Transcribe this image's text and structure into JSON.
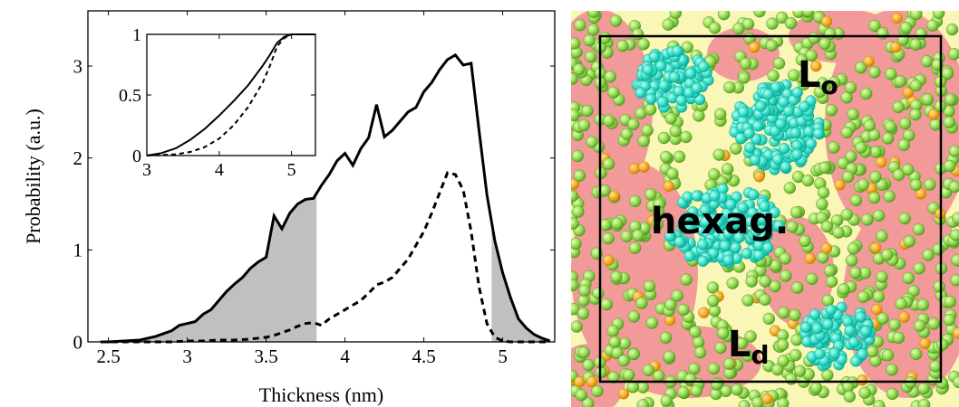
{
  "chart_data": [
    {
      "type": "line",
      "xlabel": "Thickness (nm)",
      "ylabel": "Probability (a.u.)",
      "x": [
        2.45,
        2.5,
        2.55,
        2.6,
        2.65,
        2.7,
        2.75,
        2.8,
        2.85,
        2.9,
        2.95,
        3.0,
        3.05,
        3.1,
        3.15,
        3.2,
        3.25,
        3.3,
        3.35,
        3.4,
        3.45,
        3.5,
        3.55,
        3.6,
        3.65,
        3.7,
        3.75,
        3.8,
        3.85,
        3.9,
        3.95,
        4.0,
        4.05,
        4.1,
        4.15,
        4.2,
        4.25,
        4.3,
        4.35,
        4.4,
        4.45,
        4.5,
        4.55,
        4.6,
        4.65,
        4.7,
        4.75,
        4.8,
        4.85,
        4.9,
        4.95,
        5.0,
        5.05,
        5.1,
        5.15,
        5.2,
        5.25,
        5.3
      ],
      "series": [
        {
          "color": "#000000",
          "style": "solid",
          "values": [
            0,
            0,
            0.005,
            0.01,
            0.015,
            0.02,
            0.04,
            0.06,
            0.09,
            0.12,
            0.18,
            0.2,
            0.22,
            0.3,
            0.35,
            0.45,
            0.55,
            0.63,
            0.7,
            0.8,
            0.87,
            0.92,
            1.37,
            1.23,
            1.4,
            1.5,
            1.55,
            1.56,
            1.7,
            1.82,
            1.97,
            2.05,
            1.92,
            2.1,
            2.22,
            2.58,
            2.23,
            2.3,
            2.4,
            2.5,
            2.55,
            2.72,
            2.82,
            2.96,
            3.07,
            3.12,
            3.01,
            3.03,
            2.3,
            1.6,
            1.1,
            0.75,
            0.48,
            0.25,
            0.15,
            0.08,
            0.04,
            0.01
          ]
        },
        {
          "color": "#000000",
          "style": "dashed",
          "values": [
            0,
            0,
            0,
            0,
            0,
            0,
            0,
            0,
            0,
            0,
            0.005,
            0.01,
            0.01,
            0.01,
            0.015,
            0.02,
            0.02,
            0.02,
            0.025,
            0.03,
            0.04,
            0.05,
            0.07,
            0.1,
            0.13,
            0.17,
            0.2,
            0.21,
            0.18,
            0.25,
            0.3,
            0.35,
            0.4,
            0.45,
            0.53,
            0.62,
            0.65,
            0.7,
            0.8,
            0.9,
            1.05,
            1.2,
            1.4,
            1.62,
            1.84,
            1.82,
            1.65,
            1.2,
            0.6,
            0.2,
            0.05,
            0.01,
            0,
            0,
            0,
            0,
            0,
            0
          ]
        }
      ],
      "shaded_ranges": [
        [
          2.37,
          3.82
        ],
        [
          4.93,
          5.33
        ]
      ],
      "shade_color": "#c0c0c0",
      "xlim": [
        2.37,
        5.33
      ],
      "ylim": [
        0,
        3.6
      ],
      "xticks": [
        2.5,
        3,
        3.5,
        4,
        4.5,
        5
      ],
      "yticks": [
        0,
        1,
        2,
        3
      ]
    },
    {
      "type": "line",
      "x": [
        3.0,
        3.2,
        3.4,
        3.6,
        3.8,
        4.0,
        4.2,
        4.4,
        4.6,
        4.7,
        4.8,
        4.9,
        5.0,
        5.33
      ],
      "series": [
        {
          "color": "#000000",
          "style": "solid",
          "values": [
            0,
            0.02,
            0.06,
            0.13,
            0.22,
            0.33,
            0.45,
            0.58,
            0.74,
            0.83,
            0.93,
            0.98,
            1,
            1
          ]
        },
        {
          "color": "#000000",
          "style": "dashed",
          "values": [
            0,
            0.005,
            0.01,
            0.03,
            0.07,
            0.14,
            0.25,
            0.4,
            0.6,
            0.74,
            0.9,
            0.97,
            1,
            1
          ]
        }
      ],
      "xlim": [
        3,
        5.33
      ],
      "ylim": [
        0,
        1
      ],
      "xticks": [
        3,
        4,
        5
      ],
      "yticks": [
        0,
        0.5,
        1
      ]
    }
  ],
  "snapshot": {
    "labels": [
      {
        "text": "L",
        "sub": "o"
      },
      {
        "text": "hexag."
      },
      {
        "text": "L",
        "sub": "d"
      }
    ]
  }
}
